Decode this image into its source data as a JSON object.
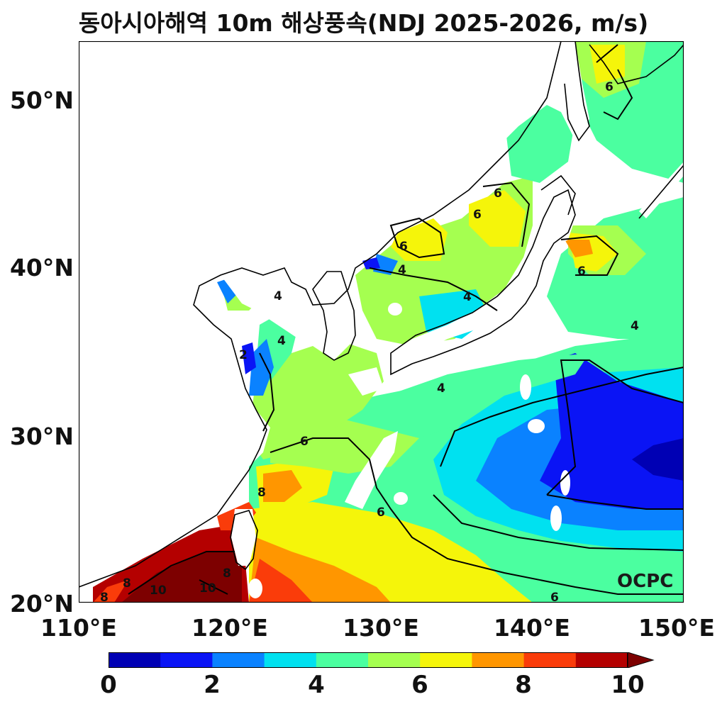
{
  "title": "동아시아해역 10m 해상풍속(NDJ 2025-2026, m/s)",
  "watermark": "OCPC",
  "axes": {
    "lat_labels": [
      "50°N",
      "40°N",
      "30°N",
      "20°N"
    ],
    "lon_labels": [
      "110°E",
      "120°E",
      "130°E",
      "140°E",
      "150°E"
    ],
    "lon_range": [
      110,
      150
    ],
    "lat_range": [
      20,
      53.5
    ]
  },
  "contour_labels": [
    "2",
    "4",
    "4",
    "4",
    "4",
    "4",
    "4",
    "6",
    "6",
    "6",
    "6",
    "6",
    "6",
    "6",
    "6",
    "8",
    "8",
    "8",
    "8",
    "10",
    "10"
  ],
  "colorbar": {
    "labels": [
      "0",
      "2",
      "4",
      "6",
      "8",
      "10"
    ],
    "colors": [
      "#0000b4",
      "#0a14f5",
      "#0a82ff",
      "#00e1f0",
      "#4bffa0",
      "#a5ff50",
      "#f5f50a",
      "#ff9600",
      "#fa3c0a",
      "#b40000",
      "#7d0000"
    ],
    "extend": "max"
  }
}
